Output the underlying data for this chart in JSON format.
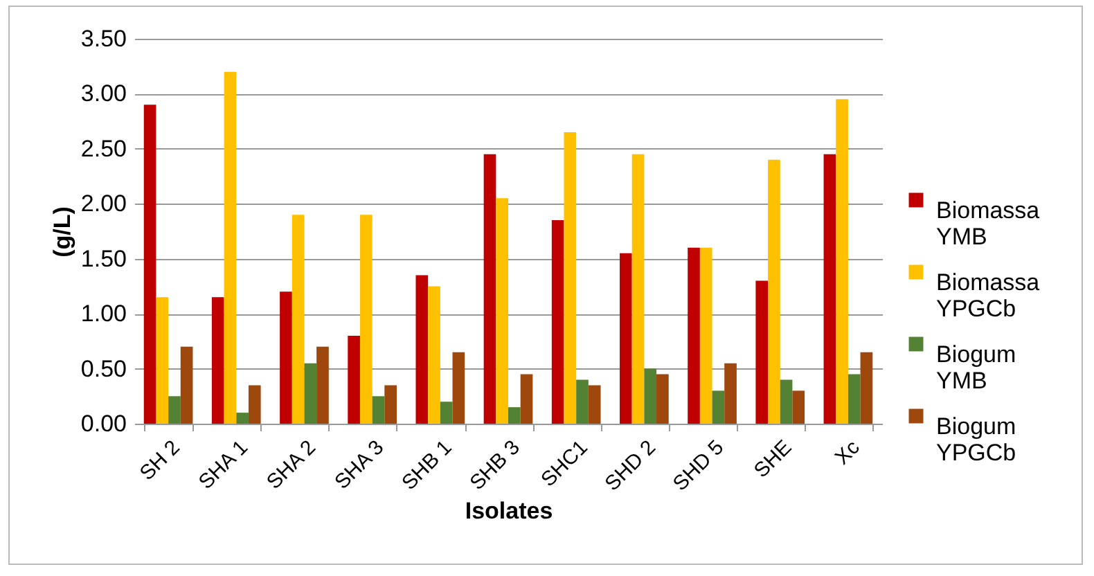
{
  "chart_data": {
    "type": "bar",
    "xlabel": "Isolates",
    "ylabel": "(g/L)",
    "categories": [
      "SH 2",
      "SHA 1",
      "SHA 2",
      "SHA 3",
      "SHB 1",
      "SHB 3",
      "SHC1",
      "SHD 2",
      "SHD 5",
      "SHE",
      "Xc"
    ],
    "series": [
      {
        "name": "Biomassa YMB",
        "color": "#c00000",
        "values": [
          2.9,
          1.15,
          1.2,
          0.8,
          1.35,
          2.45,
          1.85,
          1.55,
          1.6,
          1.3,
          2.45
        ]
      },
      {
        "name": "Biomassa YPGCb",
        "color": "#ffc000",
        "values": [
          1.15,
          3.2,
          1.9,
          1.9,
          1.25,
          2.05,
          2.65,
          2.45,
          1.6,
          2.4,
          2.95
        ]
      },
      {
        "name": "Biogum YMB",
        "color": "#548235",
        "values": [
          0.25,
          0.1,
          0.55,
          0.25,
          0.2,
          0.15,
          0.4,
          0.5,
          0.3,
          0.4,
          0.45
        ]
      },
      {
        "name": "Biogum YPGCb",
        "color": "#9e480e",
        "values": [
          0.7,
          0.35,
          0.7,
          0.35,
          0.65,
          0.45,
          0.35,
          0.45,
          0.55,
          0.3,
          0.65
        ]
      }
    ],
    "ylim": [
      0,
      3.5
    ],
    "yticks": [
      {
        "value": 0,
        "label": "0.00"
      },
      {
        "value": 0.5,
        "label": "0.50"
      },
      {
        "value": 1,
        "label": "1.00"
      },
      {
        "value": 1.5,
        "label": "1.50"
      },
      {
        "value": 2,
        "label": "2.00"
      },
      {
        "value": 2.5,
        "label": "2.50"
      },
      {
        "value": 3,
        "label": "3.00"
      },
      {
        "value": 3.5,
        "label": "3.50"
      }
    ],
    "grid": "y",
    "legend": "right"
  }
}
